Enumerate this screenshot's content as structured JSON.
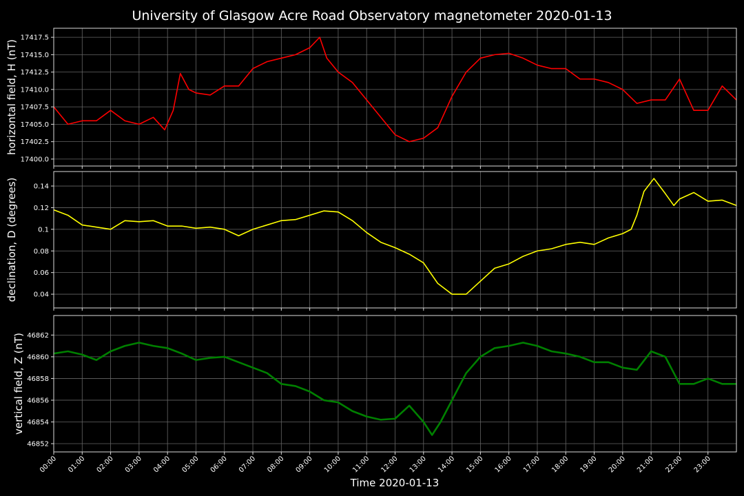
{
  "chart_data": [
    {
      "type": "line",
      "title": "University of Glasgow Acre Road Observatory magnetometer 2020-01-13",
      "ylabel": "horizontal field, H (nT)",
      "color": "#ff0000",
      "grid": true,
      "x": [
        0,
        0.5,
        1,
        1.5,
        2,
        2.5,
        3,
        3.5,
        3.9,
        4.2,
        4.45,
        4.75,
        5,
        5.5,
        6,
        6.5,
        7,
        7.5,
        8,
        8.5,
        9,
        9.35,
        9.6,
        10,
        10.5,
        11,
        11.5,
        12,
        12.5,
        13,
        13.5,
        14,
        14.5,
        15,
        15.5,
        16,
        16.5,
        17,
        17.5,
        18,
        18.5,
        19,
        19.5,
        20,
        20.5,
        21,
        21.5,
        22,
        22.5,
        23,
        23.5,
        24
      ],
      "values": [
        17407.5,
        17405,
        17405.5,
        17405.5,
        17407,
        17405.5,
        17405,
        17406,
        17404.2,
        17407,
        17412.3,
        17410,
        17409.5,
        17409.2,
        17410.5,
        17410.5,
        17413,
        17414,
        17414.5,
        17415,
        17416,
        17417.5,
        17414.5,
        17412.5,
        17411,
        17408.5,
        17406,
        17403.5,
        17402.5,
        17403,
        17404.5,
        17409,
        17412.5,
        17414.5,
        17415,
        17415.2,
        17414.5,
        17413.5,
        17413,
        17413,
        17411.5,
        17411.5,
        17411,
        17410,
        17408,
        17408.5,
        17408.5,
        17411.5,
        17407,
        17407,
        17410.5,
        17408.5
      ],
      "xlim": [
        0,
        24
      ],
      "ylim": [
        17399.0,
        17418.8
      ],
      "yticks": [
        {
          "value": 17400,
          "label": "17400.0"
        },
        17402.5,
        {
          "value": 17405,
          "label": "17405.0"
        },
        17407.5,
        {
          "value": 17410,
          "label": "17410.0"
        },
        17412.5,
        {
          "value": 17415,
          "label": "17415.0"
        },
        17417.5
      ]
    },
    {
      "type": "line",
      "ylabel": "declination, D (degrees)",
      "color": "#ffff00",
      "grid": true,
      "x": [
        0,
        0.5,
        1,
        1.5,
        2,
        2.5,
        3,
        3.5,
        4,
        4.5,
        5,
        5.5,
        6,
        6.5,
        7,
        7.5,
        8,
        8.5,
        9,
        9.5,
        10,
        10.5,
        11,
        11.5,
        12,
        12.5,
        13,
        13.5,
        14,
        14.5,
        15,
        15.5,
        16,
        16.5,
        17,
        17.5,
        18,
        18.5,
        19,
        19.5,
        20,
        20.3,
        20.5,
        20.75,
        21.1,
        21.5,
        21.8,
        22,
        22.5,
        23,
        23.5,
        24
      ],
      "values": [
        0.118,
        0.113,
        0.104,
        0.102,
        0.1,
        0.108,
        0.107,
        0.108,
        0.103,
        0.103,
        0.101,
        0.102,
        0.1,
        0.094,
        0.1,
        0.104,
        0.108,
        0.109,
        0.113,
        0.117,
        0.116,
        0.108,
        0.097,
        0.088,
        0.083,
        0.077,
        0.069,
        0.05,
        0.04,
        0.04,
        0.052,
        0.064,
        0.068,
        0.075,
        0.08,
        0.082,
        0.086,
        0.088,
        0.086,
        0.092,
        0.096,
        0.1,
        0.113,
        0.135,
        0.147,
        0.133,
        0.122,
        0.128,
        0.134,
        0.126,
        0.127,
        0.122
      ],
      "xlim": [
        0,
        24
      ],
      "ylim": [
        0.0273,
        0.1534
      ],
      "yticks": [
        0.04,
        0.06,
        0.08,
        0.1,
        0.12,
        0.14
      ]
    },
    {
      "type": "line",
      "ylabel": "vertical field, Z (nT)",
      "xlabel": "Time 2020-01-13",
      "color": "#008000",
      "grid": true,
      "x": [
        0,
        0.5,
        1,
        1.5,
        2,
        2.5,
        3,
        3.5,
        4,
        4.5,
        5,
        5.5,
        6,
        6.5,
        7,
        7.5,
        8,
        8.5,
        9,
        9.5,
        10,
        10.5,
        11,
        11.5,
        12,
        12.5,
        13,
        13.3,
        13.6,
        14,
        14.5,
        15,
        15.5,
        16,
        16.5,
        17,
        17.5,
        18,
        18.5,
        19,
        19.5,
        20,
        20.5,
        21,
        21.5,
        22,
        22.5,
        23,
        23.5,
        24
      ],
      "values": [
        46860.3,
        46860.5,
        46860.2,
        46859.7,
        46860.5,
        46861,
        46861.3,
        46861,
        46860.8,
        46860.3,
        46859.7,
        46859.9,
        46860,
        46859.5,
        46859,
        46858.5,
        46857.5,
        46857.3,
        46856.8,
        46856,
        46855.8,
        46855,
        46854.5,
        46854.2,
        46854.3,
        46855.5,
        46854,
        46852.8,
        46854,
        46856,
        46858.5,
        46860,
        46860.8,
        46861,
        46861.3,
        46861,
        46860.5,
        46860.3,
        46860,
        46859.5,
        46859.5,
        46859,
        46858.8,
        46860.5,
        46860,
        46857.5,
        46857.5,
        46858,
        46857.5,
        46857.5
      ],
      "xlim": [
        0,
        24
      ],
      "ylim": [
        46851.24,
        46863.8
      ],
      "yticks": [
        46852,
        46854,
        46856,
        46858,
        46860,
        46862
      ],
      "xticks": [
        {
          "value": 0,
          "label": "00:00"
        },
        {
          "value": 1,
          "label": "01:00"
        },
        {
          "value": 2,
          "label": "02:00"
        },
        {
          "value": 3,
          "label": "03:00"
        },
        {
          "value": 4,
          "label": "04:00"
        },
        {
          "value": 5,
          "label": "05:00"
        },
        {
          "value": 6,
          "label": "06:00"
        },
        {
          "value": 7,
          "label": "07:00"
        },
        {
          "value": 8,
          "label": "08:00"
        },
        {
          "value": 9,
          "label": "09:00"
        },
        {
          "value": 10,
          "label": "10:00"
        },
        {
          "value": 11,
          "label": "11:00"
        },
        {
          "value": 12,
          "label": "12:00"
        },
        {
          "value": 13,
          "label": "13:00"
        },
        {
          "value": 14,
          "label": "14:00"
        },
        {
          "value": 15,
          "label": "15:00"
        },
        {
          "value": 16,
          "label": "16:00"
        },
        {
          "value": 17,
          "label": "17:00"
        },
        {
          "value": 18,
          "label": "18:00"
        },
        {
          "value": 19,
          "label": "19:00"
        },
        {
          "value": 20,
          "label": "20:00"
        },
        {
          "value": 21,
          "label": "21:00"
        },
        {
          "value": 22,
          "label": "22:00"
        },
        {
          "value": 23,
          "label": "23:00"
        }
      ]
    }
  ]
}
